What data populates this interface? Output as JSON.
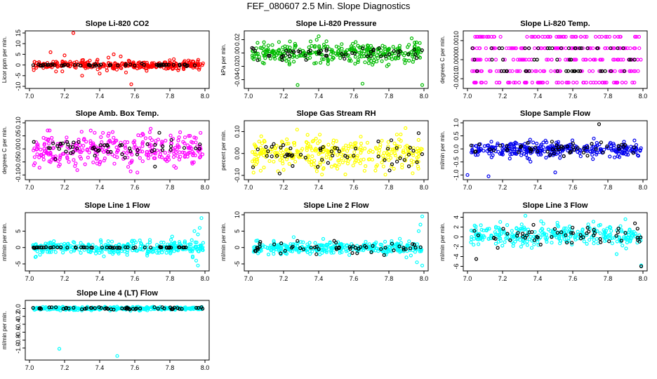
{
  "page": {
    "title": "FEF_080607  2.5 Min. Slope Diagnostics"
  },
  "chart_data": [
    {
      "type": "scatter",
      "title": "Slope Li-820 CO2",
      "ylabel": "Licor ppm per min.",
      "xlim": [
        7.0,
        8.0
      ],
      "ylim": [
        -10,
        15
      ],
      "x_ticks": [
        "7.0",
        "7.2",
        "7.4",
        "7.6",
        "7.8",
        "8.0"
      ],
      "y_ticks": [
        "-10",
        "-5",
        "0",
        "5",
        "10",
        "15"
      ],
      "y_tick_values": [
        -10,
        -5,
        0,
        5,
        10,
        15
      ],
      "series": [
        {
          "name": "colored",
          "color": "#ff0000",
          "center": 0,
          "spread": 1.2,
          "outliers": [
            [
              7.25,
              15.8
            ],
            [
              7.48,
              5.0
            ],
            [
              7.45,
              3.5
            ],
            [
              7.2,
              4.5
            ],
            [
              7.12,
              6.0
            ],
            [
              7.58,
              -9.0
            ],
            [
              7.4,
              -4.0
            ],
            [
              7.3,
              -5.0
            ],
            [
              7.55,
              -3.5
            ],
            [
              7.52,
              4.0
            ]
          ]
        },
        {
          "name": "black",
          "color": "#000000",
          "center": 0,
          "spread": 0.3
        }
      ]
    },
    {
      "type": "scatter",
      "title": "Slope Li-820 Pressure",
      "ylabel": "kPa per min.",
      "xlim": [
        7.0,
        8.0
      ],
      "ylim": [
        -0.05,
        0.03
      ],
      "x_ticks": [
        "7.0",
        "7.2",
        "7.4",
        "7.6",
        "7.8",
        "8.0"
      ],
      "y_ticks": [
        "-0.04",
        "-0.02",
        "0.00",
        "0.02"
      ],
      "y_tick_values": [
        -0.04,
        -0.02,
        0.0,
        0.02
      ],
      "series": [
        {
          "name": "colored",
          "color": "#00bb00",
          "center": 0.0,
          "spread": 0.009,
          "outliers": [
            [
              7.28,
              -0.048
            ],
            [
              7.65,
              -0.046
            ],
            [
              7.99,
              -0.048
            ],
            [
              7.4,
              0.025
            ],
            [
              7.93,
              0.022
            ]
          ]
        },
        {
          "name": "black",
          "color": "#000000",
          "center": 0.0,
          "spread": 0.006
        }
      ]
    },
    {
      "type": "scatter",
      "title": "Slope Li-820 Temp.",
      "ylabel": "degrees C per min.",
      "xlim": [
        7.0,
        8.0
      ],
      "ylim": [
        -0.0014,
        0.0014
      ],
      "x_ticks": [
        "7.0",
        "7.2",
        "7.4",
        "7.6",
        "7.8",
        "8.0"
      ],
      "y_ticks": [
        "-0.0010",
        "0.0000",
        "0.0010"
      ],
      "y_tick_values": [
        -0.001,
        0.0,
        0.001
      ],
      "series": [
        {
          "name": "colored",
          "color": "#ff00ff",
          "levels": [
            -0.0012,
            -0.0006,
            0.0,
            0.0006,
            0.0012
          ]
        },
        {
          "name": "black",
          "color": "#000000",
          "levels": [
            -0.0006,
            0.0,
            0.0006
          ]
        }
      ]
    },
    {
      "type": "scatter",
      "title": "Slope Amb. Box Temp.",
      "ylabel": "degrees C per min.",
      "xlim": [
        7.0,
        8.0
      ],
      "ylim": [
        -0.11,
        0.1
      ],
      "x_ticks": [
        "7.0",
        "7.2",
        "7.4",
        "7.6",
        "7.8",
        "8.0"
      ],
      "y_ticks": [
        "-0.10",
        "-0.05",
        "0.00",
        "0.05",
        "0.10"
      ],
      "y_tick_values": [
        -0.1,
        -0.05,
        0.0,
        0.05,
        0.1
      ],
      "series": [
        {
          "name": "colored",
          "color": "#ff00ff",
          "center": 0.0,
          "spread": 0.04
        },
        {
          "name": "black",
          "color": "#000000",
          "center": 0.0,
          "spread": 0.025
        }
      ]
    },
    {
      "type": "scatter",
      "title": "Slope Gas Stream RH",
      "ylabel": "percent per min.",
      "xlim": [
        7.0,
        8.0
      ],
      "ylim": [
        -0.11,
        0.14
      ],
      "x_ticks": [
        "7.0",
        "7.2",
        "7.4",
        "7.6",
        "7.8",
        "8.0"
      ],
      "y_ticks": [
        "-0.10",
        "0.00",
        "0.10"
      ],
      "y_tick_values": [
        -0.1,
        0.0,
        0.1
      ],
      "series": [
        {
          "name": "colored",
          "color": "#ffff00",
          "center": 0.0,
          "spread": 0.045
        },
        {
          "name": "black",
          "color": "#000000",
          "center": 0.0,
          "spread": 0.04
        }
      ]
    },
    {
      "type": "scatter",
      "title": "Slope Sample Flow",
      "ylabel": "ml/min per min.",
      "xlim": [
        7.0,
        8.0
      ],
      "ylim": [
        -1.1,
        1.0
      ],
      "x_ticks": [
        "7.0",
        "7.2",
        "7.4",
        "7.6",
        "7.8",
        "8.0"
      ],
      "y_ticks": [
        "-1.0",
        "-0.5",
        "0.0",
        "0.5",
        "1.0"
      ],
      "y_tick_values": [
        -1.0,
        -0.5,
        0.0,
        0.5,
        1.0
      ],
      "series": [
        {
          "name": "colored",
          "color": "#0000ee",
          "center": 0.0,
          "spread": 0.18,
          "outliers": [
            [
              7.12,
              -1.05
            ],
            [
              7.0,
              -1.0
            ],
            [
              7.5,
              -0.9
            ]
          ]
        },
        {
          "name": "black",
          "color": "#000000",
          "center": 0.0,
          "spread": 0.2,
          "outliers": [
            [
              7.75,
              0.95
            ]
          ]
        }
      ]
    },
    {
      "type": "scatter",
      "title": "Slope Line 1 Flow",
      "ylabel": "ml/min per min.",
      "xlim": [
        7.0,
        8.0
      ],
      "ylim": [
        -6.5,
        10
      ],
      "x_ticks": [
        "7.0",
        "7.2",
        "7.4",
        "7.6",
        "7.8",
        "8.0"
      ],
      "y_ticks": [
        "-5",
        "0",
        "5"
      ],
      "y_tick_values": [
        -5,
        0,
        5
      ],
      "series": [
        {
          "name": "colored",
          "color": "#00ffff",
          "center": 0.0,
          "spread": 1.2,
          "outliers": [
            [
              7.98,
              9.0
            ],
            [
              7.97,
              6.0
            ],
            [
              7.96,
              4.0
            ],
            [
              7.95,
              -4.0
            ],
            [
              7.96,
              -5.5
            ],
            [
              7.94,
              5.0
            ],
            [
              7.93,
              -3.0
            ]
          ]
        },
        {
          "name": "black",
          "color": "#000000",
          "center": 0.0,
          "spread": 0.08
        }
      ]
    },
    {
      "type": "scatter",
      "title": "Slope Line 2 Flow",
      "ylabel": "ml/min per min.",
      "xlim": [
        7.0,
        8.0
      ],
      "ylim": [
        -6.5,
        10
      ],
      "x_ticks": [
        "7.0",
        "7.2",
        "7.4",
        "7.6",
        "7.8",
        "8.0"
      ],
      "y_ticks": [
        "-5",
        "0",
        "5",
        "10"
      ],
      "y_tick_values": [
        -5,
        0,
        5,
        10
      ],
      "series": [
        {
          "name": "colored",
          "color": "#00ffff",
          "center": 0.0,
          "spread": 1.2,
          "outliers": [
            [
              7.99,
              9.5
            ],
            [
              7.98,
              7.0
            ],
            [
              7.97,
              5.0
            ],
            [
              7.99,
              -5.5
            ],
            [
              7.96,
              -4.5
            ],
            [
              7.9,
              -3.0
            ]
          ]
        },
        {
          "name": "black",
          "color": "#000000",
          "center": 0.0,
          "spread": 1.2
        }
      ]
    },
    {
      "type": "scatter",
      "title": "Slope Line 3 Flow",
      "ylabel": "ml/min per min.",
      "xlim": [
        7.0,
        8.0
      ],
      "ylim": [
        -6.5,
        4.5
      ],
      "x_ticks": [
        "7.0",
        "7.2",
        "7.4",
        "7.6",
        "7.8",
        "8.0"
      ],
      "y_ticks": [
        "-6",
        "-4",
        "-2",
        "0",
        "2",
        "4"
      ],
      "y_tick_values": [
        -6,
        -4,
        -2,
        0,
        2,
        4
      ],
      "series": [
        {
          "name": "colored",
          "color": "#00ffff",
          "center": 0.3,
          "spread": 1.3,
          "outliers": [
            [
              7.33,
              4.3
            ],
            [
              7.9,
              3.6
            ],
            [
              7.99,
              -5.8
            ],
            [
              7.85,
              -3.5
            ]
          ]
        },
        {
          "name": "black",
          "color": "#000000",
          "center": 0.3,
          "spread": 1.2,
          "outliers": [
            [
              7.05,
              -4.5
            ],
            [
              7.99,
              -6.0
            ]
          ]
        }
      ]
    },
    {
      "type": "scatter",
      "title": "Slope Line 4 (LT) Flow",
      "ylabel": "ml/min per min.",
      "xlim": [
        7.0,
        8.0
      ],
      "ylim": [
        -1.25,
        0.15
      ],
      "x_ticks": [
        "7.0",
        "7.2",
        "7.4",
        "7.6",
        "7.8",
        "8.0"
      ],
      "y_ticks": [
        "-1.0",
        "-0.8",
        "-0.6",
        "-0.4",
        "-0.2",
        "0.0"
      ],
      "y_tick_values": [
        -1.0,
        -0.8,
        -0.6,
        -0.4,
        -0.2,
        0.0
      ],
      "series": [
        {
          "name": "colored",
          "color": "#00ffff",
          "center": 0.0,
          "spread": 0.025,
          "outliers": [
            [
              7.17,
              -1.02
            ],
            [
              7.5,
              -1.2
            ]
          ]
        },
        {
          "name": "black",
          "color": "#000000",
          "center": 0.0,
          "spread": 0.02
        }
      ]
    }
  ]
}
